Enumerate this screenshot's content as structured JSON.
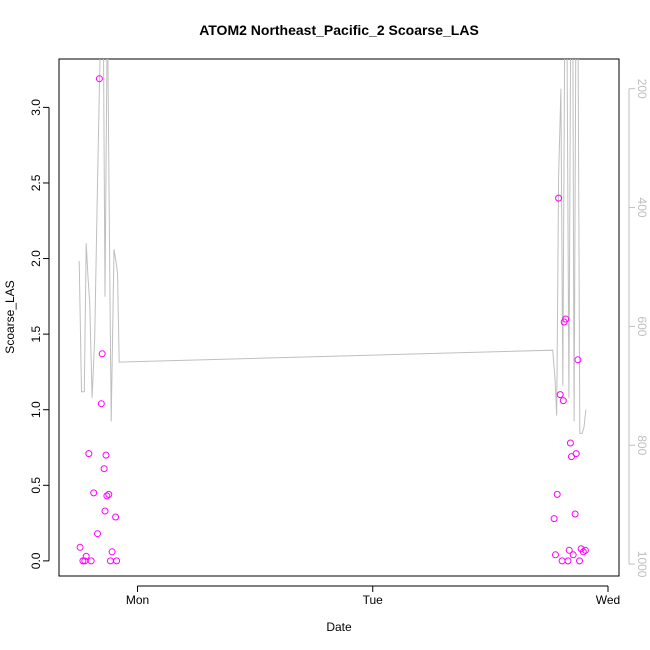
{
  "chart_data": {
    "type": "scatter",
    "title": "ATOM2 Northeast_Pacific_2 Scoarse_LAS",
    "xlabel": "Date",
    "ylabel": "Scoarse_LAS",
    "x_unit": "days",
    "x_ticks": [
      {
        "value": 1.0,
        "label": "Mon"
      },
      {
        "value": 2.0,
        "label": "Tue"
      },
      {
        "value": 3.0,
        "label": "Wed"
      }
    ],
    "ylim": [
      -0.1,
      3.32
    ],
    "y_ticks": [
      "0.0",
      "0.5",
      "1.0",
      "1.5",
      "2.0",
      "2.5",
      "3.0"
    ],
    "y2_axis": {
      "direction": "reversed",
      "ylim": [
        1020,
        150
      ],
      "ticks": [
        "200",
        "400",
        "600",
        "800",
        "1000"
      ],
      "color": "#bfbfbf"
    },
    "grid": false,
    "series": [
      {
        "kind": "points",
        "axis": "left",
        "color": "#ff00ff",
        "points": [
          [
            0.756,
            0.09
          ],
          [
            0.768,
            0.0
          ],
          [
            0.776,
            0.0
          ],
          [
            0.782,
            0.03
          ],
          [
            0.793,
            0.71
          ],
          [
            0.803,
            0.0
          ],
          [
            0.814,
            0.45
          ],
          [
            0.83,
            0.18
          ],
          [
            0.838,
            3.19
          ],
          [
            0.846,
            1.04
          ],
          [
            0.85,
            1.37
          ],
          [
            0.858,
            0.61
          ],
          [
            0.862,
            0.33
          ],
          [
            0.866,
            0.7
          ],
          [
            0.87,
            0.43
          ],
          [
            0.878,
            0.44
          ],
          [
            0.885,
            0.0
          ],
          [
            0.892,
            0.06
          ],
          [
            0.907,
            0.29
          ],
          [
            0.911,
            0.0
          ],
          [
            2.771,
            0.28
          ],
          [
            2.777,
            0.04
          ],
          [
            2.784,
            0.44
          ],
          [
            2.79,
            2.4
          ],
          [
            2.797,
            1.1
          ],
          [
            2.805,
            0.0
          ],
          [
            2.81,
            1.06
          ],
          [
            2.814,
            1.58
          ],
          [
            2.82,
            1.6
          ],
          [
            2.83,
            0.0
          ],
          [
            2.835,
            0.07
          ],
          [
            2.84,
            0.78
          ],
          [
            2.845,
            0.69
          ],
          [
            2.852,
            0.04
          ],
          [
            2.86,
            0.31
          ],
          [
            2.865,
            0.71
          ],
          [
            2.872,
            1.33
          ],
          [
            2.879,
            0.0
          ],
          [
            2.886,
            0.08
          ],
          [
            2.895,
            0.06
          ],
          [
            2.904,
            0.07
          ]
        ]
      },
      {
        "kind": "line",
        "axis": "right",
        "color": "#bfbfbf",
        "segments": [
          [
            [
              0.752,
              490
            ],
            [
              0.762,
              710
            ],
            [
              0.774,
              710
            ],
            [
              0.782,
              460
            ],
            [
              0.79,
              520
            ],
            [
              0.797,
              560
            ],
            [
              0.807,
              720
            ],
            [
              0.818,
              620
            ],
            [
              0.83,
              360
            ],
            [
              0.838,
              200
            ],
            [
              0.846,
              50
            ],
            [
              0.854,
              50
            ],
            [
              0.862,
              550
            ],
            [
              0.872,
              50
            ],
            [
              0.882,
              500
            ],
            [
              0.888,
              760
            ],
            [
              0.9,
              470
            ],
            [
              0.908,
              490
            ],
            [
              0.915,
              510
            ],
            [
              0.922,
              660
            ],
            [
              2.765,
              640
            ],
            [
              2.775,
              690
            ],
            [
              2.782,
              750
            ],
            [
              2.79,
              350
            ],
            [
              2.8,
              200
            ],
            [
              2.808,
              700
            ],
            [
              2.817,
              50
            ],
            [
              2.825,
              50
            ],
            [
              2.834,
              720
            ],
            [
              2.842,
              50
            ],
            [
              2.85,
              50
            ],
            [
              2.856,
              760
            ],
            [
              2.864,
              50
            ],
            [
              2.872,
              50
            ],
            [
              2.88,
              780
            ],
            [
              2.89,
              780
            ],
            [
              2.898,
              770
            ],
            [
              2.906,
              740
            ]
          ]
        ]
      }
    ]
  }
}
